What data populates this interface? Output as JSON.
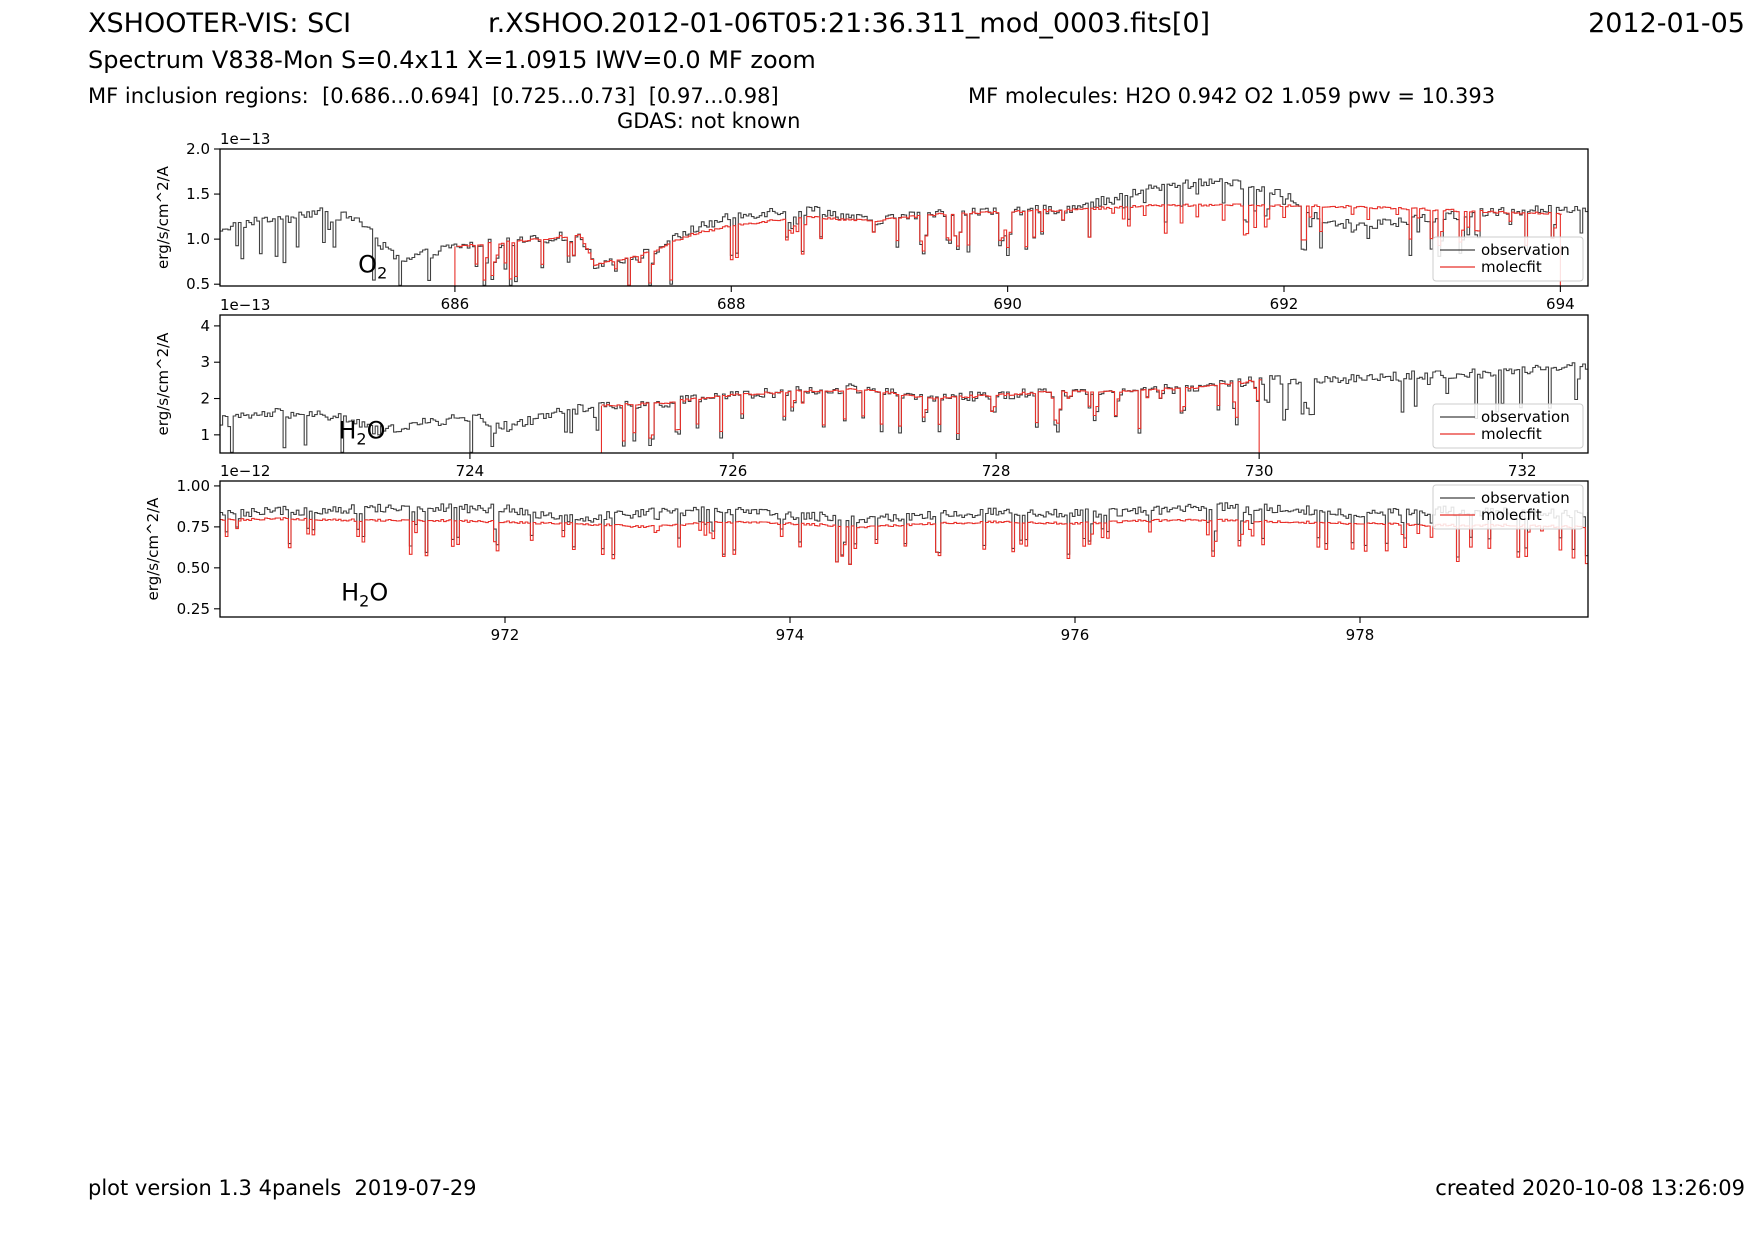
{
  "header": {
    "title_left": "XSHOOTER-VIS: SCI",
    "title_center": "r.XSHOO.2012-01-06T05:21:36.311_mod_0003.fits[0]",
    "title_right": "2012-01-05",
    "subtitle": "Spectrum V838-Mon S=0.4x11 X=1.0915 IWV=0.0 MF zoom",
    "inclusion_regions": "MF inclusion regions:  [0.686...0.694]  [0.725...0.73]  [0.97...0.98]",
    "molecules": "MF molecules: H2O 0.942 O2 1.059 pwv = 10.393",
    "gdas": "GDAS: not known"
  },
  "footer": {
    "left": "plot version 1.3 4panels  2019-07-29",
    "right": "created 2020-10-08 13:26:09"
  },
  "colors": {
    "observation": "#404040",
    "molecfit": "#e8302a"
  },
  "chart_data": [
    {
      "type": "line",
      "ylabel": "erg/s/cm^2/A",
      "scale_label": "1e−13",
      "xlim": [
        684.3,
        694.2
      ],
      "ylim": [
        0.48,
        2.0
      ],
      "xticks": [
        686,
        688,
        690,
        692,
        694
      ],
      "yticks": [
        0.5,
        1.0,
        1.5,
        2.0
      ],
      "ytick_labels": [
        "0.5",
        "1.0",
        "1.5",
        "2.0"
      ],
      "annotation": {
        "text": "O",
        "sub": "2",
        "x": 685.3,
        "y": 0.63
      },
      "legend": {
        "position": "lower-right",
        "entries": [
          "observation",
          "molecfit"
        ]
      },
      "molecfit_start": 686.0,
      "molecfit_end": 694.0,
      "series": [
        {
          "name": "observation",
          "points": [
            [
              684.3,
              1.12
            ],
            [
              684.7,
              1.25
            ],
            [
              685.0,
              1.3
            ],
            [
              685.3,
              1.22
            ],
            [
              685.45,
              0.95
            ],
            [
              685.6,
              0.75
            ],
            [
              685.8,
              0.85
            ],
            [
              686.0,
              0.92
            ],
            [
              686.5,
              0.98
            ],
            [
              686.9,
              1.05
            ],
            [
              687.0,
              0.72
            ],
            [
              687.2,
              0.78
            ],
            [
              687.4,
              0.85
            ],
            [
              687.7,
              1.1
            ],
            [
              688.0,
              1.25
            ],
            [
              688.5,
              1.35
            ],
            [
              689.0,
              1.2
            ],
            [
              689.5,
              1.3
            ],
            [
              690.0,
              1.3
            ],
            [
              690.5,
              1.35
            ],
            [
              691.0,
              1.55
            ],
            [
              691.5,
              1.65
            ],
            [
              692.0,
              1.5
            ],
            [
              692.2,
              1.25
            ],
            [
              692.5,
              1.15
            ],
            [
              693.0,
              1.22
            ],
            [
              693.5,
              1.3
            ],
            [
              694.2,
              1.35
            ]
          ]
        },
        {
          "name": "molecfit",
          "points": [
            [
              686.0,
              0.92
            ],
            [
              686.5,
              0.98
            ],
            [
              686.9,
              1.05
            ],
            [
              687.0,
              0.72
            ],
            [
              687.2,
              0.78
            ],
            [
              687.4,
              0.85
            ],
            [
              687.7,
              1.05
            ],
            [
              688.0,
              1.15
            ],
            [
              688.5,
              1.25
            ],
            [
              689.0,
              1.2
            ],
            [
              689.5,
              1.28
            ],
            [
              690.0,
              1.3
            ],
            [
              690.5,
              1.33
            ],
            [
              691.0,
              1.37
            ],
            [
              691.5,
              1.38
            ],
            [
              692.0,
              1.37
            ],
            [
              692.5,
              1.36
            ],
            [
              693.0,
              1.33
            ],
            [
              693.5,
              1.3
            ],
            [
              694.0,
              1.28
            ]
          ]
        }
      ]
    },
    {
      "type": "line",
      "ylabel": "erg/s/cm^2/A",
      "scale_label": "1e−13",
      "xlim": [
        722.1,
        732.5
      ],
      "ylim": [
        0.5,
        4.3
      ],
      "xticks": [
        724,
        726,
        728,
        730,
        732
      ],
      "yticks": [
        1,
        2,
        3,
        4
      ],
      "ytick_labels": [
        "1",
        "2",
        "3",
        "4"
      ],
      "annotation": {
        "text": "H",
        "sub": "2",
        "tail": "O",
        "x": 723.0,
        "y": 0.9
      },
      "legend": {
        "position": "lower-right",
        "entries": [
          "observation",
          "molecfit"
        ]
      },
      "molecfit_start": 725.0,
      "molecfit_end": 730.0,
      "series": [
        {
          "name": "observation",
          "points": [
            [
              722.1,
              1.4
            ],
            [
              722.5,
              1.6
            ],
            [
              723.0,
              1.5
            ],
            [
              723.3,
              1.1
            ],
            [
              723.6,
              1.3
            ],
            [
              724.0,
              1.5
            ],
            [
              724.3,
              1.2
            ],
            [
              724.6,
              1.6
            ],
            [
              725.0,
              1.8
            ],
            [
              725.5,
              1.9
            ],
            [
              726.0,
              2.1
            ],
            [
              726.5,
              2.2
            ],
            [
              727.0,
              2.3
            ],
            [
              727.5,
              2.0
            ],
            [
              728.0,
              2.1
            ],
            [
              728.5,
              2.2
            ],
            [
              729.0,
              2.2
            ],
            [
              729.5,
              2.3
            ],
            [
              730.0,
              2.5
            ],
            [
              730.5,
              2.5
            ],
            [
              731.0,
              2.6
            ],
            [
              731.5,
              2.7
            ],
            [
              732.0,
              2.8
            ],
            [
              732.5,
              2.9
            ]
          ]
        },
        {
          "name": "molecfit",
          "points": [
            [
              725.0,
              1.8
            ],
            [
              725.5,
              1.9
            ],
            [
              726.0,
              2.1
            ],
            [
              726.5,
              2.2
            ],
            [
              727.0,
              2.25
            ],
            [
              727.5,
              2.0
            ],
            [
              728.0,
              2.1
            ],
            [
              728.5,
              2.2
            ],
            [
              729.0,
              2.2
            ],
            [
              729.5,
              2.3
            ],
            [
              730.0,
              2.5
            ]
          ]
        }
      ]
    },
    {
      "type": "line",
      "ylabel": "erg/s/cm^2/A",
      "scale_label": "1e−12",
      "xlim": [
        970.0,
        979.6
      ],
      "ylim": [
        0.2,
        1.03
      ],
      "xticks": [
        972,
        974,
        976,
        978
      ],
      "yticks": [
        0.25,
        0.5,
        0.75,
        1.0
      ],
      "ytick_labels": [
        "0.25",
        "0.50",
        "0.75",
        "1.00"
      ],
      "annotation": {
        "text": "H",
        "sub": "2",
        "tail": "O",
        "x": 970.85,
        "y": 0.3
      },
      "legend": {
        "position": "upper-right",
        "entries": [
          "observation",
          "molecfit"
        ]
      },
      "molecfit_start": 970.0,
      "molecfit_end": 979.6,
      "series": [
        {
          "name": "observation",
          "points": [
            [
              970.0,
              0.82
            ],
            [
              970.5,
              0.85
            ],
            [
              971.0,
              0.86
            ],
            [
              971.5,
              0.87
            ],
            [
              972.0,
              0.86
            ],
            [
              972.5,
              0.8
            ],
            [
              973.0,
              0.84
            ],
            [
              973.5,
              0.85
            ],
            [
              974.0,
              0.82
            ],
            [
              974.5,
              0.8
            ],
            [
              975.0,
              0.82
            ],
            [
              975.5,
              0.84
            ],
            [
              976.0,
              0.83
            ],
            [
              976.5,
              0.85
            ],
            [
              977.0,
              0.87
            ],
            [
              977.5,
              0.86
            ],
            [
              978.0,
              0.82
            ],
            [
              978.5,
              0.85
            ],
            [
              979.0,
              0.84
            ],
            [
              979.6,
              0.83
            ]
          ]
        },
        {
          "name": "molecfit",
          "points": [
            [
              970.0,
              0.79
            ],
            [
              970.5,
              0.8
            ],
            [
              971.0,
              0.79
            ],
            [
              971.5,
              0.79
            ],
            [
              972.0,
              0.78
            ],
            [
              972.5,
              0.77
            ],
            [
              973.0,
              0.75
            ],
            [
              973.5,
              0.78
            ],
            [
              974.0,
              0.77
            ],
            [
              974.5,
              0.75
            ],
            [
              975.0,
              0.77
            ],
            [
              975.5,
              0.78
            ],
            [
              976.0,
              0.77
            ],
            [
              976.5,
              0.79
            ],
            [
              977.0,
              0.79
            ],
            [
              977.5,
              0.78
            ],
            [
              978.0,
              0.77
            ],
            [
              978.5,
              0.76
            ],
            [
              979.0,
              0.76
            ],
            [
              979.6,
              0.75
            ]
          ]
        }
      ]
    }
  ]
}
